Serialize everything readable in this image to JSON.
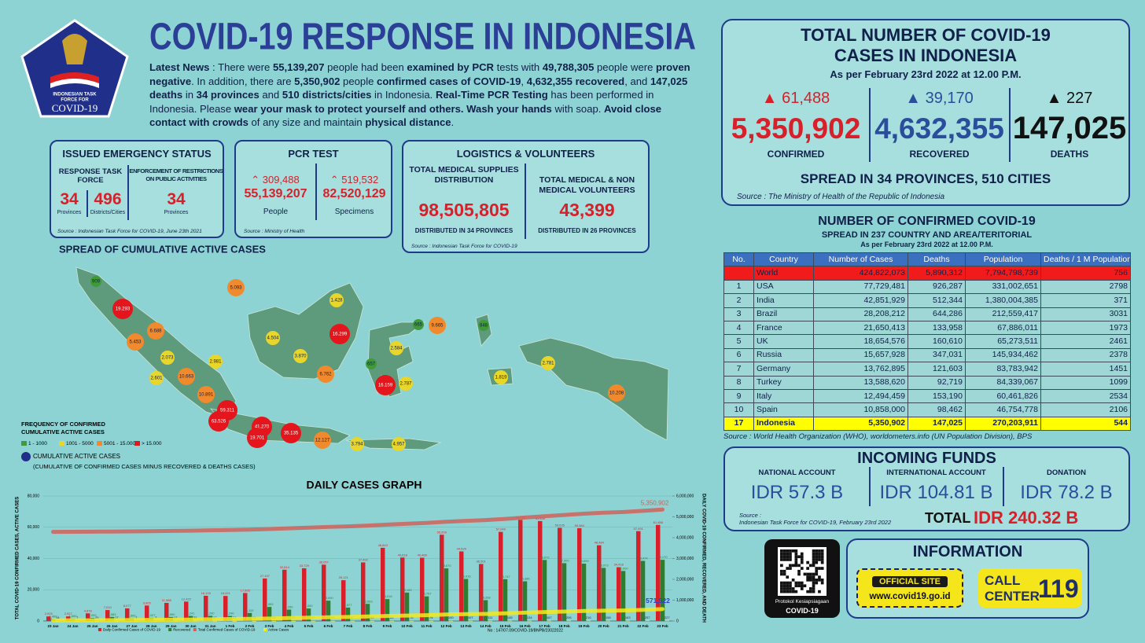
{
  "header": {
    "title": "COVID-19 RESPONSE IN INDONESIA",
    "news": [
      {
        "text": "Latest News",
        "bold": true
      },
      {
        "text": " : There were ",
        "bold": false
      },
      {
        "text": "55,139,207",
        "bold": true
      },
      {
        "text": " people had been ",
        "bold": false
      },
      {
        "text": "examined by PCR",
        "bold": true
      },
      {
        "text": " tests with ",
        "bold": false
      },
      {
        "text": "49,788,305",
        "bold": true
      },
      {
        "text": " people were ",
        "bold": false
      },
      {
        "text": "proven negative",
        "bold": true
      },
      {
        "text": ". In addition, there are ",
        "bold": false
      },
      {
        "text": "5,350,902",
        "bold": true
      },
      {
        "text": " people ",
        "bold": false
      },
      {
        "text": "confirmed cases of COVID-19",
        "bold": true
      },
      {
        "text": ", ",
        "bold": false
      },
      {
        "text": "4,632,355 recovered",
        "bold": true
      },
      {
        "text": ", and ",
        "bold": false
      },
      {
        "text": "147,025 deaths",
        "bold": true
      },
      {
        "text": " in ",
        "bold": false
      },
      {
        "text": "34 provinces",
        "bold": true
      },
      {
        "text": " and ",
        "bold": false
      },
      {
        "text": "510 districts/cities",
        "bold": true
      },
      {
        "text": " in Indonesia. ",
        "bold": false
      },
      {
        "text": "Real-Time PCR Testing",
        "bold": true
      },
      {
        "text": " has been performed in Indonesia. Please ",
        "bold": false
      },
      {
        "text": "wear your mask to protect yourself and others. Wash your hands",
        "bold": true
      },
      {
        "text": " with soap. ",
        "bold": false
      },
      {
        "text": "Avoid close contact with crowds",
        "bold": true
      },
      {
        "text": " of any size and maintain ",
        "bold": false
      },
      {
        "text": "physical distance",
        "bold": true
      },
      {
        "text": ".",
        "bold": false
      }
    ]
  },
  "logo": {
    "line1": "INDONESIAN TASK",
    "line2": "FORCE FOR",
    "line3": "COVID-19"
  },
  "emergency": {
    "title": "ISSUED EMERGENCY STATUS",
    "response_label": "RESPONSE TASK FORCE",
    "enforcement_label": "ENFORCEMENT OF RESTRICTIONS ON PUBLIC ACTIVITIES",
    "response_provinces": "34",
    "response_provinces_unit": "Provinces",
    "response_districts": "496",
    "response_districts_unit": "Districts/Cities",
    "enforcement_provinces": "34",
    "enforcement_provinces_unit": "Provinces",
    "source": "Source : Indonesian Task Force for COVID-19, June 23th 2021"
  },
  "pcr": {
    "title": "PCR TEST",
    "people_delta": "309,488",
    "people": "55,139,207",
    "people_label": "People",
    "specimens_delta": "519,532",
    "specimens": "82,520,129",
    "specimens_label": "Specimens",
    "source": "Source : Ministry of Health"
  },
  "logistics": {
    "title": "LOGISTICS & VOLUNTEERS",
    "supplies_label": "TOTAL MEDICAL SUPPLIES DISTRIBUTION",
    "supplies": "98,505,805",
    "supplies_note": "DISTRIBUTED IN 34 PROVINCES",
    "volunteers_label": "TOTAL MEDICAL & NON MEDICAL VOLUNTEERS",
    "volunteers": "43,399",
    "volunteers_note": "DISTRIBUTED IN 26 PROVINCES",
    "source": "Source : Indonesian Task Force for COVID-19"
  },
  "totals": {
    "title1": "TOTAL NUMBER OF COVID-19",
    "title2": "CASES IN INDONESIA",
    "date": "As per February 23rd 2022 at 12.00 P.M.",
    "confirmed_delta": "61,488",
    "confirmed": "5,350,902",
    "confirmed_label": "CONFIRMED",
    "recovered_delta": "39,170",
    "recovered": "4,632,355",
    "recovered_label": "RECOVERED",
    "deaths_delta": "227",
    "deaths": "147,025",
    "deaths_label": "DEATHS",
    "spread": "SPREAD IN 34 PROVINCES, 510 CITIES",
    "source": "Source : The Ministry of Health of the Republic of Indonesia"
  },
  "world_table": {
    "title": "NUMBER OF CONFIRMED COVID-19",
    "subtitle": "SPREAD IN 237 COUNTRY AND AREA/TERITORIAL",
    "date": "As per February 23rd 2022 at 12.00 P.M.",
    "columns": [
      "No.",
      "Country",
      "Number of Cases",
      "Deaths",
      "Population",
      "Deaths / 1 M Population"
    ],
    "rows": [
      [
        null,
        "World",
        "424,822,073",
        "5,890,312",
        "7,794,798,739",
        "756"
      ],
      [
        "1",
        "USA",
        "77,729,481",
        "926,287",
        "331,002,651",
        "2798"
      ],
      [
        "2",
        "India",
        "42,851,929",
        "512,344",
        "1,380,004,385",
        "371"
      ],
      [
        "3",
        "Brazil",
        "28,208,212",
        "644,286",
        "212,559,417",
        "3031"
      ],
      [
        "4",
        "France",
        "21,650,413",
        "133,958",
        "67,886,011",
        "1973"
      ],
      [
        "5",
        "UK",
        "18,654,576",
        "160,610",
        "65,273,511",
        "2461"
      ],
      [
        "6",
        "Russia",
        "15,657,928",
        "347,031",
        "145,934,462",
        "2378"
      ],
      [
        "7",
        "Germany",
        "13,762,895",
        "121,603",
        "83,783,942",
        "1451"
      ],
      [
        "8",
        "Turkey",
        "13,588,620",
        "92,719",
        "84,339,067",
        "1099"
      ],
      [
        "9",
        "Italy",
        "12,494,459",
        "153,190",
        "60,461,826",
        "2534"
      ],
      [
        "10",
        "Spain",
        "10,858,000",
        "98,462",
        "46,754,778",
        "2106"
      ],
      [
        "17",
        "Indonesia",
        "5,350,902",
        "147,025",
        "270,203,911",
        "544"
      ]
    ],
    "source": "Source : World Health Organization (WHO), worldometers.info (UN Population Division), BPS"
  },
  "funds": {
    "title": "INCOMING FUNDS",
    "national_label": "NATIONAL ACCOUNT",
    "national": "IDR 57.3 B",
    "international_label": "INTERNATIONAL ACCOUNT",
    "international": "IDR 104.81 B",
    "donation_label": "DONATION",
    "donation": "IDR 78.2 B",
    "source1": "Source :",
    "source2": "Indonesian Task Force for COVID-19, February 23rd 2022",
    "total_label": "TOTAL",
    "total": "IDR 240.32 B"
  },
  "qr": {
    "caption1": "Protokol Kesiapsiagaan",
    "caption2": "COVID-19"
  },
  "information": {
    "title": "INFORMATION",
    "site_label": "OFFICIAL SITE",
    "site": "www.covid19.go.id",
    "call1": "CALL",
    "call2": "CENTER",
    "call_number": "119"
  },
  "map": {
    "title": "SPREAD OF CUMULATIVE ACTIVE CASES",
    "legend_title1": "FREQUENCY OF CONFIRMED",
    "legend_title2": "CUMULATIVE ACTIVE CASES",
    "legend": [
      {
        "label": "1 - 1000",
        "color": "#3f9a3a"
      },
      {
        "label": "1001 - 5000",
        "color": "#e8d62a"
      },
      {
        "label": "5001 - 15.000",
        "color": "#f08a2c"
      },
      {
        "label": "> 15.000",
        "color": "#e4151c"
      }
    ],
    "circle_label": "CUMULATIVE ACTIVE CASES",
    "circle_note": "(CUMULATIVE OF CONFIRMED CASES MINUS RECOVERED & DEATHS CASES)",
    "points": [
      {
        "label": "909",
        "color": "#3f9a3a"
      },
      {
        "label": "19.293",
        "color": "#e4151c"
      },
      {
        "label": "5.093",
        "color": "#f08a2c"
      },
      {
        "label": "6.688",
        "color": "#f08a2c"
      },
      {
        "label": "5.453",
        "color": "#f08a2c"
      },
      {
        "label": "2.073",
        "color": "#e8d62a"
      },
      {
        "label": "2.601",
        "color": "#e8d62a"
      },
      {
        "label": "10.663",
        "color": "#f08a2c"
      },
      {
        "label": "2.981",
        "color": "#e8d62a"
      },
      {
        "label": "10.891",
        "color": "#f08a2c"
      },
      {
        "label": "59.311",
        "color": "#e4151c"
      },
      {
        "label": "63.526",
        "color": "#e4151c"
      },
      {
        "label": "41.270",
        "color": "#e4151c"
      },
      {
        "label": "19.701",
        "color": "#e4151c"
      },
      {
        "label": "35.135",
        "color": "#e4151c"
      },
      {
        "label": "12.127",
        "color": "#f08a2c"
      },
      {
        "label": "3.794",
        "color": "#e8d62a"
      },
      {
        "label": "4.957",
        "color": "#e8d62a"
      },
      {
        "label": "4.504",
        "color": "#e8d62a"
      },
      {
        "label": "3.870",
        "color": "#e8d62a"
      },
      {
        "label": "1.428",
        "color": "#e8d62a"
      },
      {
        "label": "16.299",
        "color": "#e4151c"
      },
      {
        "label": "6.762",
        "color": "#f08a2c"
      },
      {
        "label": "657",
        "color": "#3f9a3a"
      },
      {
        "label": "16.159",
        "color": "#e4151c"
      },
      {
        "label": "2.787",
        "color": "#e8d62a"
      },
      {
        "label": "2.584",
        "color": "#e8d62a"
      },
      {
        "label": "665",
        "color": "#3f9a3a"
      },
      {
        "label": "9.665",
        "color": "#f08a2c"
      },
      {
        "label": "848",
        "color": "#3f9a3a"
      },
      {
        "label": "1.819",
        "color": "#e8d62a"
      },
      {
        "label": "2.781",
        "color": "#e8d62a"
      },
      {
        "label": "10.208",
        "color": "#f08a2c"
      }
    ]
  },
  "graph": {
    "type": "bar",
    "title": "DAILY CASES GRAPH",
    "ylabel": "TOTAL COVID-19 CONFIRMED CASES, ACTIVE CASES",
    "y2label": "DAILY COVID-19 CONFIRMED, RECOVERED, AND DEATH",
    "categories": [
      "23 Jan",
      "24 Jan",
      "25 Jan",
      "26 Jan",
      "27 Jan",
      "28 Jan",
      "29 Jan",
      "30 Jan",
      "31 Jan",
      "1 Feb",
      "2 Feb",
      "3 Feb",
      "4 Feb",
      "5 Feb",
      "6 Feb",
      "7 Feb",
      "8 Feb",
      "9 Feb",
      "10 Feb",
      "11 Feb",
      "12 Feb",
      "13 Feb",
      "14 Feb",
      "15 Feb",
      "16 Feb",
      "17 Feb",
      "18 Feb",
      "19 Feb",
      "20 Feb",
      "21 Feb",
      "22 Feb",
      "23 Feb"
    ],
    "ylim": [
      0,
      80000
    ],
    "yticks": [
      0,
      {
        "value": 20000,
        "label": "20,000"
      },
      {
        "value": 40000,
        "label": "40,000"
      },
      {
        "value": 60000,
        "label": "60,000"
      },
      {
        "value": 80000,
        "label": "80,000"
      }
    ],
    "y2lim": [
      0,
      6000000
    ],
    "y2ticks": [
      0,
      {
        "value": 1000000,
        "label": "1,000,000"
      },
      {
        "value": 2000000,
        "label": "2,000,000"
      },
      {
        "value": 3000000,
        "label": "3,000,000"
      },
      {
        "value": 4000000,
        "label": "4,000,000"
      },
      {
        "value": 5000000,
        "label": "5,000,000"
      },
      {
        "value": 6000000,
        "label": "6,000,000"
      }
    ],
    "grid": true,
    "series": [
      {
        "name": "Daily Confirmed Cases of COVID-19",
        "type": "bar",
        "color": "#d8202a",
        "values": [
          2925,
          2927,
          4878,
          7010,
          8077,
          9905,
          11588,
          12422,
          16133,
          16021,
          17895,
          27197,
          32814,
          33729,
          36057,
          26121,
          37492,
          46843,
          40618,
          40489,
          55209,
          44526,
          36501,
          57049,
          64718,
          63956,
          59635,
          59384,
          48484,
          34418,
          57491,
          61488
        ],
        "value_labels": [
          "2,925",
          "2,927",
          "4,878",
          "7,010",
          "8,077",
          "9,905",
          "11,588",
          "12,422",
          "16,133",
          "16,021",
          "17,895",
          "27,197",
          "32,814",
          "33,729",
          "36,057",
          "26,121",
          "37,492",
          "46,843",
          "40,618",
          "40,489",
          "55,209",
          "44,526",
          "36,501",
          "57,049",
          "64,718",
          "63,956",
          "59,635",
          "59,384",
          "48,484",
          "34,418",
          "57,491",
          "61,488"
        ]
      },
      {
        "name": "Recovered",
        "type": "bar",
        "color": "#2e7d32",
        "values": [
          1400,
          1600,
          2000,
          2583,
          1800,
          2027,
          2590,
          3241,
          3290,
          3240,
          5110,
          8993,
          7290,
          8000,
          13000,
          8577,
          10963,
          14016,
          18182,
          15767,
          33670,
          26916,
          13338,
          26747,
          25386,
          39072,
          37000,
          36699,
          33973,
          32000,
          38474,
          39170
        ],
        "value_labels": [
          "1,400",
          "1,600",
          "2,000",
          "2,583",
          "1,800",
          "2,027",
          "2,590",
          "3,241",
          "3,290",
          "3,240",
          "5,110",
          "8,993",
          "7,290",
          "8,000",
          "13,000",
          "8,577",
          "10,963",
          "14,016",
          "18,182",
          "15,767",
          "33,670",
          "26,916",
          "13,338",
          "26,747",
          "25,386",
          "39,072",
          "37,000",
          "36,699",
          "33,973",
          "32,000",
          "38,474",
          "39,170"
        ]
      },
      {
        "type": "bar",
        "color": "#f0e020",
        "values": [
          14,
          7,
          20,
          17,
          7,
          7,
          17,
          38,
          17,
          28,
          25,
          38,
          44,
          57,
          58,
          57,
          63,
          65,
          76,
          74,
          100,
          107,
          111,
          145,
          134,
          167,
          206,
          216,
          158,
          163,
          257,
          227
        ]
      },
      {
        "name": "Total Confirmed Cases of COVID-19",
        "type": "line",
        "axis": "y2",
        "color": "#d0605a",
        "values": [
          4279827,
          4282754,
          4287632,
          4294642,
          4302719,
          4312624,
          4324212,
          4336634,
          4352767,
          4368788,
          4386683,
          4413880,
          4446694,
          4480423,
          4516480,
          4542601,
          4580093,
          4626936,
          4667554,
          4708043,
          4763252,
          4807778,
          4844279,
          4901328,
          4966046,
          5030002,
          5089637,
          5149021,
          5197505,
          5231923,
          5289414,
          5350902
        ]
      },
      {
        "name": "Active Cases",
        "type": "line",
        "axis": "y2",
        "color": "#f5ea1c",
        "values": [
          30000,
          32000,
          35000,
          40000,
          45000,
          52000,
          60000,
          68000,
          80000,
          92000,
          105000,
          120000,
          140000,
          160000,
          180000,
          195000,
          215000,
          240000,
          260000,
          280000,
          310000,
          330000,
          340000,
          370000,
          400000,
          430000,
          455000,
          480000,
          495000,
          505000,
          535000,
          571522
        ]
      }
    ],
    "total_label": "5,350,902",
    "active_label": "571,522",
    "footer": "No : 147/07.09/COVID-19/BNPB/23022022"
  }
}
